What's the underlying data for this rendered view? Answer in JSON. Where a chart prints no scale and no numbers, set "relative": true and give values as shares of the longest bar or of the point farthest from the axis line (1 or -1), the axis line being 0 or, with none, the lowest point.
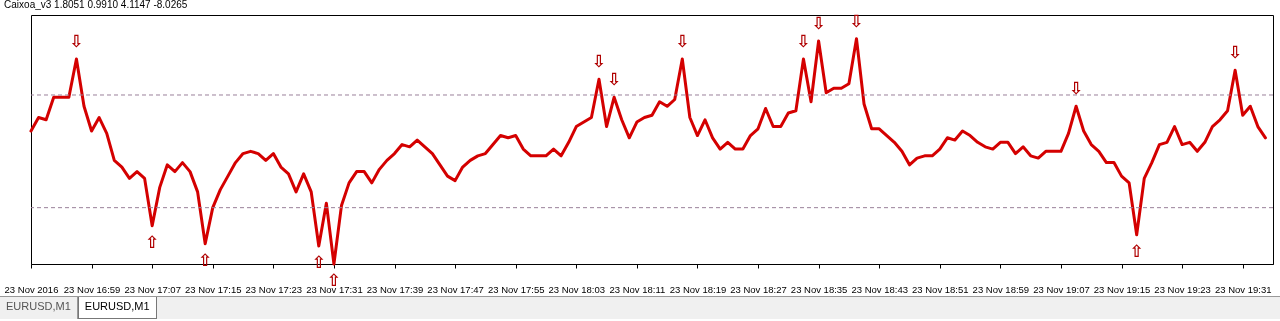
{
  "chart_data": {
    "type": "line",
    "title": "Caixoa_v3 1.8051 0.9910 4.1147 -8.0265",
    "relative": true,
    "xlim": [
      "2016-11-23T16:51",
      "2016-11-23T19:35"
    ],
    "xticks": [
      {
        "value": "2016-11-23T16:51",
        "label": "23 Nov 2016"
      },
      {
        "value": "2016-11-23T16:59",
        "label": "23 Nov 16:59"
      },
      {
        "value": "2016-11-23T17:07",
        "label": "23 Nov 17:07"
      },
      {
        "value": "2016-11-23T17:15",
        "label": "23 Nov 17:15"
      },
      {
        "value": "2016-11-23T17:23",
        "label": "23 Nov 17:23"
      },
      {
        "value": "2016-11-23T17:31",
        "label": "23 Nov 17:31"
      },
      {
        "value": "2016-11-23T17:39",
        "label": "23 Nov 17:39"
      },
      {
        "value": "2016-11-23T17:47",
        "label": "23 Nov 17:47"
      },
      {
        "value": "2016-11-23T17:55",
        "label": "23 Nov 17:55"
      },
      {
        "value": "2016-11-23T18:03",
        "label": "23 Nov 18:03"
      },
      {
        "value": "2016-11-23T18:11",
        "label": "23 Nov 18:11"
      },
      {
        "value": "2016-11-23T18:19",
        "label": "23 Nov 18:19"
      },
      {
        "value": "2016-11-23T18:27",
        "label": "23 Nov 18:27"
      },
      {
        "value": "2016-11-23T18:35",
        "label": "23 Nov 18:35"
      },
      {
        "value": "2016-11-23T18:43",
        "label": "23 Nov 18:43"
      },
      {
        "value": "2016-11-23T18:51",
        "label": "23 Nov 18:51"
      },
      {
        "value": "2016-11-23T18:59",
        "label": "23 Nov 18:59"
      },
      {
        "value": "2016-11-23T19:07",
        "label": "23 Nov 19:07"
      },
      {
        "value": "2016-11-23T19:15",
        "label": "23 Nov 19:15"
      },
      {
        "value": "2016-11-23T19:23",
        "label": "23 Nov 19:23"
      },
      {
        "value": "2016-11-23T19:31",
        "label": "23 Nov 19:31"
      }
    ],
    "series": [
      {
        "color": "#d40000",
        "x": [
          "2016-11-23T16:51",
          "2016-11-23T16:52",
          "2016-11-23T16:53",
          "2016-11-23T16:54",
          "2016-11-23T16:55",
          "2016-11-23T16:56",
          "2016-11-23T16:57",
          "2016-11-23T16:58",
          "2016-11-23T16:59",
          "2016-11-23T17:00",
          "2016-11-23T17:01",
          "2016-11-23T17:02",
          "2016-11-23T17:03",
          "2016-11-23T17:04",
          "2016-11-23T17:05",
          "2016-11-23T17:06",
          "2016-11-23T17:07",
          "2016-11-23T17:08",
          "2016-11-23T17:09",
          "2016-11-23T17:10",
          "2016-11-23T17:11",
          "2016-11-23T17:12",
          "2016-11-23T17:13",
          "2016-11-23T17:14",
          "2016-11-23T17:15",
          "2016-11-23T17:16",
          "2016-11-23T17:17",
          "2016-11-23T17:18",
          "2016-11-23T17:19",
          "2016-11-23T17:20",
          "2016-11-23T17:21",
          "2016-11-23T17:22",
          "2016-11-23T17:23",
          "2016-11-23T17:24",
          "2016-11-23T17:25",
          "2016-11-23T17:26",
          "2016-11-23T17:27",
          "2016-11-23T17:28",
          "2016-11-23T17:29",
          "2016-11-23T17:30",
          "2016-11-23T17:31",
          "2016-11-23T17:32",
          "2016-11-23T17:33",
          "2016-11-23T17:34",
          "2016-11-23T17:35",
          "2016-11-23T17:36",
          "2016-11-23T17:37",
          "2016-11-23T17:38",
          "2016-11-23T17:39",
          "2016-11-23T17:40",
          "2016-11-23T17:41",
          "2016-11-23T17:42",
          "2016-11-23T17:43",
          "2016-11-23T17:44",
          "2016-11-23T17:45",
          "2016-11-23T17:46",
          "2016-11-23T17:47",
          "2016-11-23T17:48",
          "2016-11-23T17:49",
          "2016-11-23T17:50",
          "2016-11-23T17:51",
          "2016-11-23T17:52",
          "2016-11-23T17:53",
          "2016-11-23T17:54",
          "2016-11-23T17:55",
          "2016-11-23T17:56",
          "2016-11-23T17:57",
          "2016-11-23T17:58",
          "2016-11-23T17:59",
          "2016-11-23T18:00",
          "2016-11-23T18:01",
          "2016-11-23T18:02",
          "2016-11-23T18:03",
          "2016-11-23T18:04",
          "2016-11-23T18:05",
          "2016-11-23T18:06",
          "2016-11-23T18:07",
          "2016-11-23T18:08",
          "2016-11-23T18:09",
          "2016-11-23T18:10",
          "2016-11-23T18:11",
          "2016-11-23T18:12",
          "2016-11-23T18:13",
          "2016-11-23T18:14",
          "2016-11-23T18:15",
          "2016-11-23T18:16",
          "2016-11-23T18:17",
          "2016-11-23T18:18",
          "2016-11-23T18:19",
          "2016-11-23T18:20",
          "2016-11-23T18:21",
          "2016-11-23T18:22",
          "2016-11-23T18:23",
          "2016-11-23T18:24",
          "2016-11-23T18:25",
          "2016-11-23T18:26",
          "2016-11-23T18:27",
          "2016-11-23T18:28",
          "2016-11-23T18:29",
          "2016-11-23T18:30",
          "2016-11-23T18:31",
          "2016-11-23T18:32",
          "2016-11-23T18:33",
          "2016-11-23T18:34",
          "2016-11-23T18:35",
          "2016-11-23T18:36",
          "2016-11-23T18:37",
          "2016-11-23T18:38",
          "2016-11-23T18:39",
          "2016-11-23T18:40",
          "2016-11-23T18:41",
          "2016-11-23T18:42",
          "2016-11-23T18:43",
          "2016-11-23T18:44",
          "2016-11-23T18:45",
          "2016-11-23T18:46",
          "2016-11-23T18:47",
          "2016-11-23T18:48",
          "2016-11-23T18:49",
          "2016-11-23T18:50",
          "2016-11-23T18:51",
          "2016-11-23T18:52",
          "2016-11-23T18:53",
          "2016-11-23T18:54",
          "2016-11-23T18:55",
          "2016-11-23T18:56",
          "2016-11-23T18:57",
          "2016-11-23T18:58",
          "2016-11-23T18:59",
          "2016-11-23T19:00",
          "2016-11-23T19:01",
          "2016-11-23T19:02",
          "2016-11-23T19:03",
          "2016-11-23T19:04",
          "2016-11-23T19:05",
          "2016-11-23T19:06",
          "2016-11-23T19:07",
          "2016-11-23T19:08",
          "2016-11-23T19:09",
          "2016-11-23T19:10",
          "2016-11-23T19:11",
          "2016-11-23T19:12",
          "2016-11-23T19:13",
          "2016-11-23T19:14",
          "2016-11-23T19:15",
          "2016-11-23T19:16",
          "2016-11-23T19:17",
          "2016-11-23T19:18",
          "2016-11-23T19:19",
          "2016-11-23T19:20",
          "2016-11-23T19:21",
          "2016-11-23T19:22",
          "2016-11-23T19:23",
          "2016-11-23T19:24",
          "2016-11-23T19:25",
          "2016-11-23T19:26",
          "2016-11-23T19:27",
          "2016-11-23T19:28",
          "2016-11-23T19:29",
          "2016-11-23T19:30",
          "2016-11-23T19:31",
          "2016-11-23T19:32",
          "2016-11-23T19:33",
          "2016-11-23T19:34"
        ],
        "values": [
          0.59,
          0.65,
          0.64,
          0.74,
          0.74,
          0.74,
          0.91,
          0.7,
          0.59,
          0.65,
          0.58,
          0.46,
          0.43,
          0.38,
          0.41,
          0.38,
          0.17,
          0.34,
          0.44,
          0.41,
          0.45,
          0.41,
          0.32,
          0.09,
          0.25,
          0.33,
          0.39,
          0.45,
          0.49,
          0.5,
          0.49,
          0.46,
          0.49,
          0.43,
          0.4,
          0.32,
          0.4,
          0.32,
          0.08,
          0.27,
          0,
          0.26,
          0.36,
          0.41,
          0.41,
          0.36,
          0.42,
          0.46,
          0.49,
          0.53,
          0.52,
          0.55,
          0.52,
          0.49,
          0.44,
          0.39,
          0.37,
          0.43,
          0.46,
          0.48,
          0.49,
          0.53,
          0.57,
          0.56,
          0.57,
          0.51,
          0.48,
          0.48,
          0.48,
          0.51,
          0.48,
          0.54,
          0.61,
          0.63,
          0.65,
          0.82,
          0.61,
          0.74,
          0.64,
          0.56,
          0.63,
          0.65,
          0.66,
          0.72,
          0.7,
          0.73,
          0.91,
          0.65,
          0.57,
          0.64,
          0.56,
          0.51,
          0.54,
          0.51,
          0.51,
          0.57,
          0.6,
          0.69,
          0.61,
          0.61,
          0.67,
          0.68,
          0.91,
          0.72,
          0.99,
          0.76,
          0.78,
          0.78,
          0.8,
          1,
          0.71,
          0.6,
          0.6,
          0.57,
          0.54,
          0.5,
          0.44,
          0.47,
          0.48,
          0.48,
          0.51,
          0.56,
          0.55,
          0.59,
          0.57,
          0.54,
          0.52,
          0.51,
          0.54,
          0.54,
          0.49,
          0.52,
          0.48,
          0.47,
          0.5,
          0.5,
          0.5,
          0.58,
          0.7,
          0.59,
          0.53,
          0.5,
          0.45,
          0.45,
          0.39,
          0.36,
          0.13,
          0.38,
          0.45,
          0.53,
          0.54,
          0.61,
          0.53,
          0.54,
          0.5,
          0.54,
          0.61,
          0.64,
          0.68,
          0.86,
          0.66,
          0.7,
          0.61,
          0.56
        ]
      }
    ],
    "ref_lines": [
      {
        "axis": "y",
        "value": 0.75,
        "color": "#9a809a",
        "line_style": "dashed"
      },
      {
        "axis": "y",
        "value": 0.25,
        "color": "#9a809a",
        "line_style": "dashed"
      }
    ],
    "annotations": [
      {
        "text": "⇩",
        "x": "2016-11-23T16:57",
        "y": 0.91
      },
      {
        "text": "⇧",
        "x": "2016-11-23T17:07",
        "y": 0.17
      },
      {
        "text": "⇧",
        "x": "2016-11-23T17:14",
        "y": 0.09
      },
      {
        "text": "⇧",
        "x": "2016-11-23T17:29",
        "y": 0.08
      },
      {
        "text": "⇧",
        "x": "2016-11-23T17:31",
        "y": 0
      },
      {
        "text": "⇩",
        "x": "2016-11-23T18:06",
        "y": 0.82
      },
      {
        "text": "⇩",
        "x": "2016-11-23T18:08",
        "y": 0.74
      },
      {
        "text": "⇩",
        "x": "2016-11-23T18:17",
        "y": 0.91
      },
      {
        "text": "⇩",
        "x": "2016-11-23T18:33",
        "y": 0.91
      },
      {
        "text": "⇩",
        "x": "2016-11-23T18:35",
        "y": 0.99
      },
      {
        "text": "⇩",
        "x": "2016-11-23T18:40",
        "y": 1
      },
      {
        "text": "⇩",
        "x": "2016-11-23T19:09",
        "y": 0.7
      },
      {
        "text": "⇧",
        "x": "2016-11-23T19:17",
        "y": 0.13
      },
      {
        "text": "⇩",
        "x": "2016-11-23T19:30",
        "y": 0.86
      },
      "EURUSD,M1",
      "EURUSD,M1"
    ]
  }
}
